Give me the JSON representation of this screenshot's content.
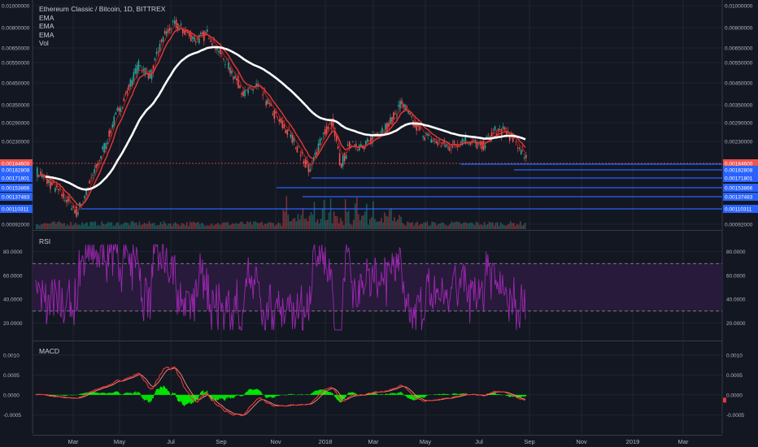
{
  "header": {
    "title": "Ethereum Classic / Bitcoin, 1D, BITTREX",
    "indicators": [
      "EMA",
      "EMA",
      "EMA",
      "Vol"
    ]
  },
  "price_axis": {
    "ticks": [
      "0.01000000",
      "0.00800000",
      "0.00650000",
      "0.00550000",
      "0.00450000",
      "0.00350000",
      "0.00290000",
      "0.00230000",
      "0.00092000"
    ]
  },
  "rsi_panel": {
    "label": "RSI",
    "ticks": [
      "80.0000",
      "60.0000",
      "40.0000",
      "20.0000"
    ]
  },
  "macd_panel": {
    "label": "MACD",
    "ticks": [
      "0.0010",
      "0.0005",
      "0.0000",
      "-0.0005"
    ]
  },
  "x_axis": {
    "ticks": [
      "Mar",
      "May",
      "Jul",
      "Sep",
      "Nov",
      "2018",
      "Mar",
      "May",
      "Jul",
      "Sep",
      "Nov",
      "2019",
      "Mar"
    ]
  },
  "price_levels": [
    {
      "label": "0.00184600",
      "color": "#ef5350"
    },
    {
      "label": "0.00182808",
      "color": "#2962ff"
    },
    {
      "label": "0.00171801",
      "color": "#2962ff"
    },
    {
      "label": "0.00153866",
      "color": "#2962ff"
    },
    {
      "label": "0.00137483",
      "color": "#2962ff"
    },
    {
      "label": "0.00110311",
      "color": "#2962ff"
    }
  ],
  "colors": {
    "background": "#131722",
    "grid": "#2a2e39",
    "candle_up": "#26a69a",
    "candle_down": "#ef5350",
    "ema_fast": "#e53935",
    "ema_mid": "#ef6c6c",
    "ema_slow": "#ffffff",
    "rsi_line": "#9c27b0",
    "rsi_band": "#2a1b3d",
    "macd_line": "#e53935",
    "signal_line": "#ff8a80",
    "histogram": "#00e600",
    "level_line": "#2962ff"
  },
  "chart_data": {
    "type": "line",
    "title": "Ethereum Classic / Bitcoin, 1D, BITTREX",
    "x": [
      "Mar",
      "May",
      "Jul",
      "Sep",
      "Nov",
      "2018",
      "Mar",
      "May",
      "Jul",
      "Sep"
    ],
    "series": [
      {
        "name": "EMA",
        "values": [
          0.00165,
          0.0051,
          0.0069,
          0.0042,
          0.0023,
          0.0026,
          0.0029,
          0.00215,
          0.00245,
          0.0019
        ]
      },
      {
        "name": "EMA",
        "values": [
          0.0016,
          0.0047,
          0.0065,
          0.0045,
          0.00245,
          0.0025,
          0.003,
          0.00222,
          0.0024,
          0.00198
        ]
      },
      {
        "name": "EMA",
        "values": [
          0.00135,
          0.0022,
          0.0044,
          0.0043,
          0.0034,
          0.003,
          0.00285,
          0.0026,
          0.0024,
          0.00232
        ]
      }
    ],
    "rsi": {
      "values": [
        52,
        68,
        62,
        46,
        32,
        55,
        62,
        45,
        55,
        38
      ],
      "bands": [
        70,
        30
      ],
      "ylim": [
        10,
        90
      ]
    },
    "macd": {
      "macd": [
        0,
        0.0002,
        0.0009,
        -0.0005,
        -0.0002,
        0.0001,
        0.0002,
        -5e-05,
        5e-05,
        -0.0001
      ],
      "ylim": [
        -0.0009,
        0.0012
      ]
    }
  }
}
